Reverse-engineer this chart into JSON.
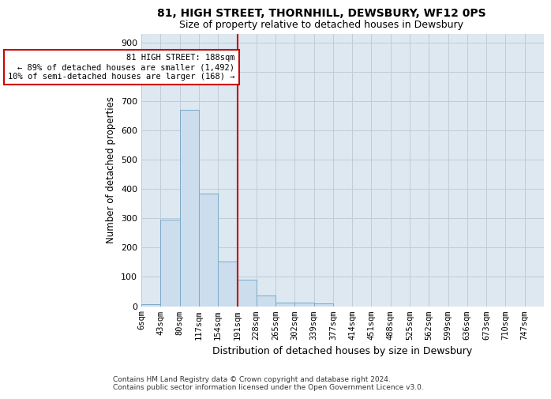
{
  "title1": "81, HIGH STREET, THORNHILL, DEWSBURY, WF12 0PS",
  "title2": "Size of property relative to detached houses in Dewsbury",
  "xlabel": "Distribution of detached houses by size in Dewsbury",
  "ylabel": "Number of detached properties",
  "footnote1": "Contains HM Land Registry data © Crown copyright and database right 2024.",
  "footnote2": "Contains public sector information licensed under the Open Government Licence v3.0.",
  "bar_labels": [
    "6sqm",
    "43sqm",
    "80sqm",
    "117sqm",
    "154sqm",
    "191sqm",
    "228sqm",
    "265sqm",
    "302sqm",
    "339sqm",
    "377sqm",
    "414sqm",
    "451sqm",
    "488sqm",
    "525sqm",
    "562sqm",
    "599sqm",
    "636sqm",
    "673sqm",
    "710sqm",
    "747sqm"
  ],
  "bar_values": [
    7,
    295,
    670,
    383,
    153,
    90,
    37,
    13,
    13,
    10,
    0,
    0,
    0,
    0,
    0,
    0,
    0,
    0,
    0,
    0,
    0
  ],
  "bar_color": "#ccdded",
  "bar_edge_color": "#7aaac8",
  "annotation_title": "81 HIGH STREET: 188sqm",
  "annotation_line1": "← 89% of detached houses are smaller (1,492)",
  "annotation_line2": "10% of semi-detached houses are larger (168) →",
  "vline_color": "#cc0000",
  "annotation_box_color": "#ffffff",
  "annotation_box_edge": "#cc0000",
  "ylim": [
    0,
    930
  ],
  "yticks": [
    0,
    100,
    200,
    300,
    400,
    500,
    600,
    700,
    800,
    900
  ],
  "bin_width": 37,
  "n_bars": 21,
  "highlight_bin_index": 5,
  "grid_color": "#c0ccd8",
  "plot_bg_color": "#dde8f0"
}
